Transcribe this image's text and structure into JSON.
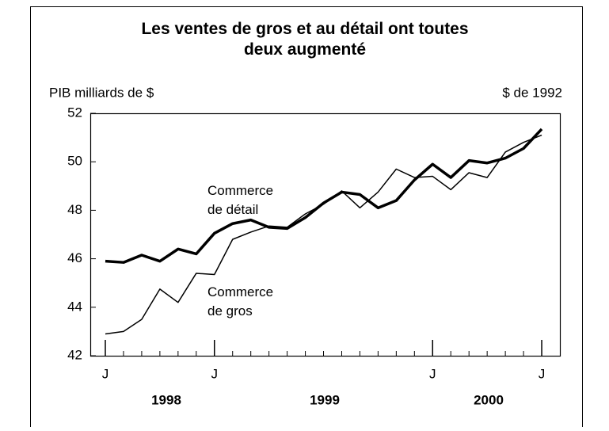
{
  "chart_data": {
    "type": "line",
    "title": "Les ventes de gros et au détail ont toutes deux augmenté",
    "y_axis_label": "PIB milliards de $",
    "y_axis_note": "$ de 1992",
    "categories": [
      "J",
      null,
      null,
      null,
      null,
      null,
      "J",
      null,
      null,
      null,
      null,
      null,
      null,
      null,
      null,
      null,
      null,
      null,
      "J",
      null,
      null,
      null,
      null,
      null,
      "J"
    ],
    "year_labels": [
      "1998",
      "1999",
      "2000"
    ],
    "series": [
      {
        "name": "Commerce de détail",
        "color": "#000000",
        "width": 3.5,
        "values": [
          45.9,
          45.85,
          46.15,
          45.9,
          46.4,
          46.2,
          47.05,
          47.45,
          47.6,
          47.3,
          47.25,
          47.7,
          48.3,
          48.75,
          48.65,
          48.1,
          48.4,
          49.25,
          49.9,
          49.35,
          50.05,
          49.95,
          50.15,
          50.55,
          51.35
        ]
      },
      {
        "name": "Commerce de gros",
        "color": "#000000",
        "width": 1.5,
        "values": [
          42.9,
          43.0,
          43.5,
          44.75,
          44.2,
          45.4,
          45.35,
          46.8,
          47.1,
          47.35,
          47.3,
          47.85,
          48.25,
          48.8,
          48.1,
          48.75,
          49.7,
          49.35,
          49.4,
          48.85,
          49.55,
          49.35,
          50.4,
          50.8,
          51.1
        ]
      }
    ],
    "ylim": [
      42,
      52
    ],
    "yticks": [
      42,
      44,
      46,
      48,
      50,
      52
    ],
    "grid": false
  }
}
